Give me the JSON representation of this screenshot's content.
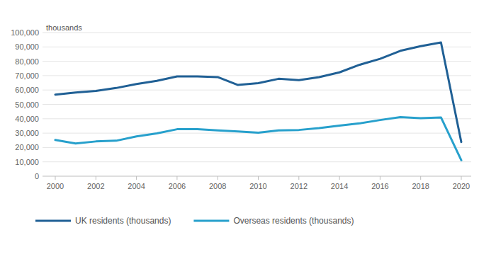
{
  "chart_data": {
    "type": "line",
    "y_label": "thousands",
    "x": [
      2000,
      2001,
      2002,
      2003,
      2004,
      2005,
      2006,
      2007,
      2008,
      2009,
      2010,
      2011,
      2012,
      2013,
      2014,
      2015,
      2016,
      2017,
      2018,
      2019,
      2020
    ],
    "series": [
      {
        "name": "UK residents (thousands)",
        "color": "#206095",
        "values": [
          56800,
          58300,
          59400,
          61400,
          64200,
          66400,
          69500,
          69500,
          69000,
          63500,
          64800,
          67800,
          66900,
          69000,
          72300,
          77600,
          81700,
          87300,
          90500,
          93100,
          23800
        ]
      },
      {
        "name": "Overseas residents (thousands)",
        "color": "#27a0cc",
        "values": [
          25200,
          22800,
          24200,
          24700,
          27700,
          29800,
          32700,
          32800,
          31900,
          31100,
          30300,
          31900,
          32200,
          33500,
          35200,
          36800,
          39100,
          41100,
          40400,
          40900,
          11100
        ]
      }
    ],
    "xlim": [
      2000,
      2020
    ],
    "xticks": [
      2000,
      2002,
      2004,
      2006,
      2008,
      2010,
      2012,
      2014,
      2016,
      2018,
      2020
    ],
    "ylim": [
      0,
      100000
    ],
    "yticks": [
      0,
      {
        "value": 10000,
        "label": "10,000"
      },
      {
        "value": 20000,
        "label": "20,000"
      },
      {
        "value": 30000,
        "label": "30,000"
      },
      {
        "value": 40000,
        "label": "40,000"
      },
      {
        "value": 50000,
        "label": "50,000"
      },
      {
        "value": 60000,
        "label": "60,000"
      },
      {
        "value": 70000,
        "label": "70,000"
      },
      {
        "value": 80000,
        "label": "80,000"
      },
      {
        "value": 90000,
        "label": "90,000"
      },
      {
        "value": 100000,
        "label": "100,000"
      }
    ],
    "grid": true,
    "legend": "bottom"
  }
}
